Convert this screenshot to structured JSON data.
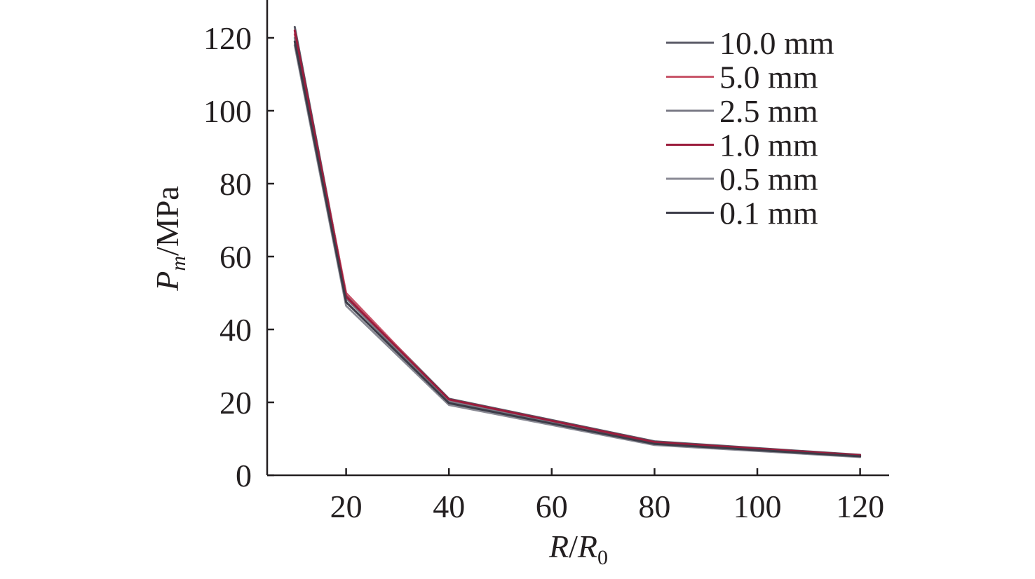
{
  "chart_data": {
    "type": "line",
    "xlabel": {
      "main": "R",
      "sep": "/",
      "sub_main": "R",
      "sub": "0"
    },
    "ylabel": {
      "main": "P",
      "sub": "m",
      "unit": "/MPa"
    },
    "xlim": [
      5,
      125
    ],
    "ylim": [
      0,
      130
    ],
    "x_ticks": [
      20,
      40,
      60,
      80,
      100,
      120
    ],
    "x_tick_labels": [
      "20",
      "40",
      "60",
      "80",
      "100",
      "120"
    ],
    "y_ticks": [
      0,
      20,
      40,
      60,
      80,
      100,
      120
    ],
    "y_tick_labels": [
      "0",
      "20",
      "40",
      "60",
      "80",
      "100",
      "120"
    ],
    "legend_position": "top-right",
    "grid": false,
    "x": [
      10,
      20,
      40,
      80,
      120
    ],
    "series": [
      {
        "name": "10.0 mm",
        "color": "#5a5a66",
        "values": [
          123,
          49.5,
          21.0,
          9.3,
          5.6
        ]
      },
      {
        "name": "5.0 mm",
        "color": "#c8566a",
        "values": [
          121,
          50.0,
          20.5,
          9.0,
          5.4
        ]
      },
      {
        "name": "2.5 mm",
        "color": "#7a7a86",
        "values": [
          120,
          48.5,
          20.2,
          8.8,
          5.3
        ]
      },
      {
        "name": "1.0 mm",
        "color": "#9b1c3c",
        "values": [
          122,
          49.0,
          20.8,
          9.1,
          5.5
        ]
      },
      {
        "name": "0.5 mm",
        "color": "#8a8a94",
        "values": [
          118,
          46.5,
          19.3,
          8.3,
          5.0
        ]
      },
      {
        "name": "0.1 mm",
        "color": "#3c3c48",
        "values": [
          119,
          47.5,
          19.8,
          8.6,
          5.2
        ]
      }
    ]
  }
}
